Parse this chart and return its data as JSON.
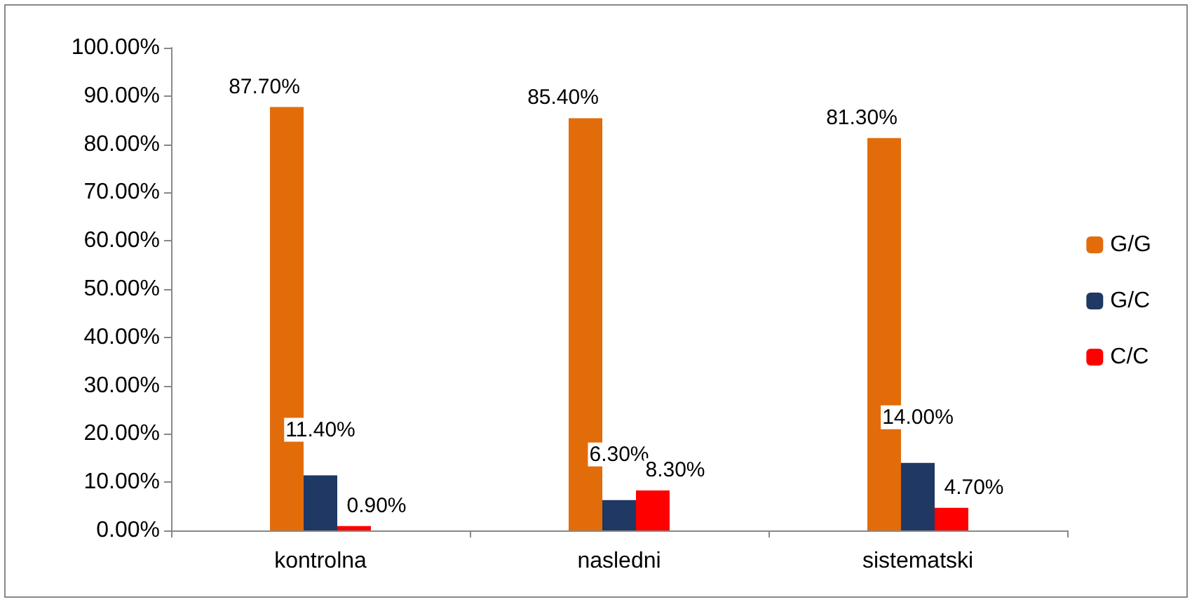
{
  "chart_data": {
    "type": "bar",
    "categories": [
      "kontrolna",
      "nasledni",
      "sistematski"
    ],
    "series": [
      {
        "name": "G/G",
        "color": "#e36c0a",
        "values": [
          87.7,
          85.4,
          81.3
        ],
        "value_labels": [
          "87.70%",
          "85.40%",
          "81.30%"
        ]
      },
      {
        "name": "G/C",
        "color": "#1f3864",
        "values": [
          11.4,
          6.3,
          14.0
        ],
        "value_labels": [
          "11.40%",
          "6.30%",
          "14.00%"
        ]
      },
      {
        "name": "C/C",
        "color": "#ff0000",
        "values": [
          0.9,
          8.3,
          4.7
        ],
        "value_labels": [
          "0.90%",
          "8.30%",
          "4.70%"
        ]
      }
    ],
    "ylim": [
      0,
      100
    ],
    "yticks": [
      {
        "value": 0,
        "label": "0.00%"
      },
      {
        "value": 10,
        "label": "10.00%"
      },
      {
        "value": 20,
        "label": "20.00%"
      },
      {
        "value": 30,
        "label": "30.00%"
      },
      {
        "value": 40,
        "label": "40.00%"
      },
      {
        "value": 50,
        "label": "50.00%"
      },
      {
        "value": 60,
        "label": "60.00%"
      },
      {
        "value": 70,
        "label": "70.00%"
      },
      {
        "value": 80,
        "label": "80.00%"
      },
      {
        "value": 90,
        "label": "90.00%"
      },
      {
        "value": 100,
        "label": "100.00%"
      }
    ],
    "grid": false,
    "legend": "right"
  }
}
